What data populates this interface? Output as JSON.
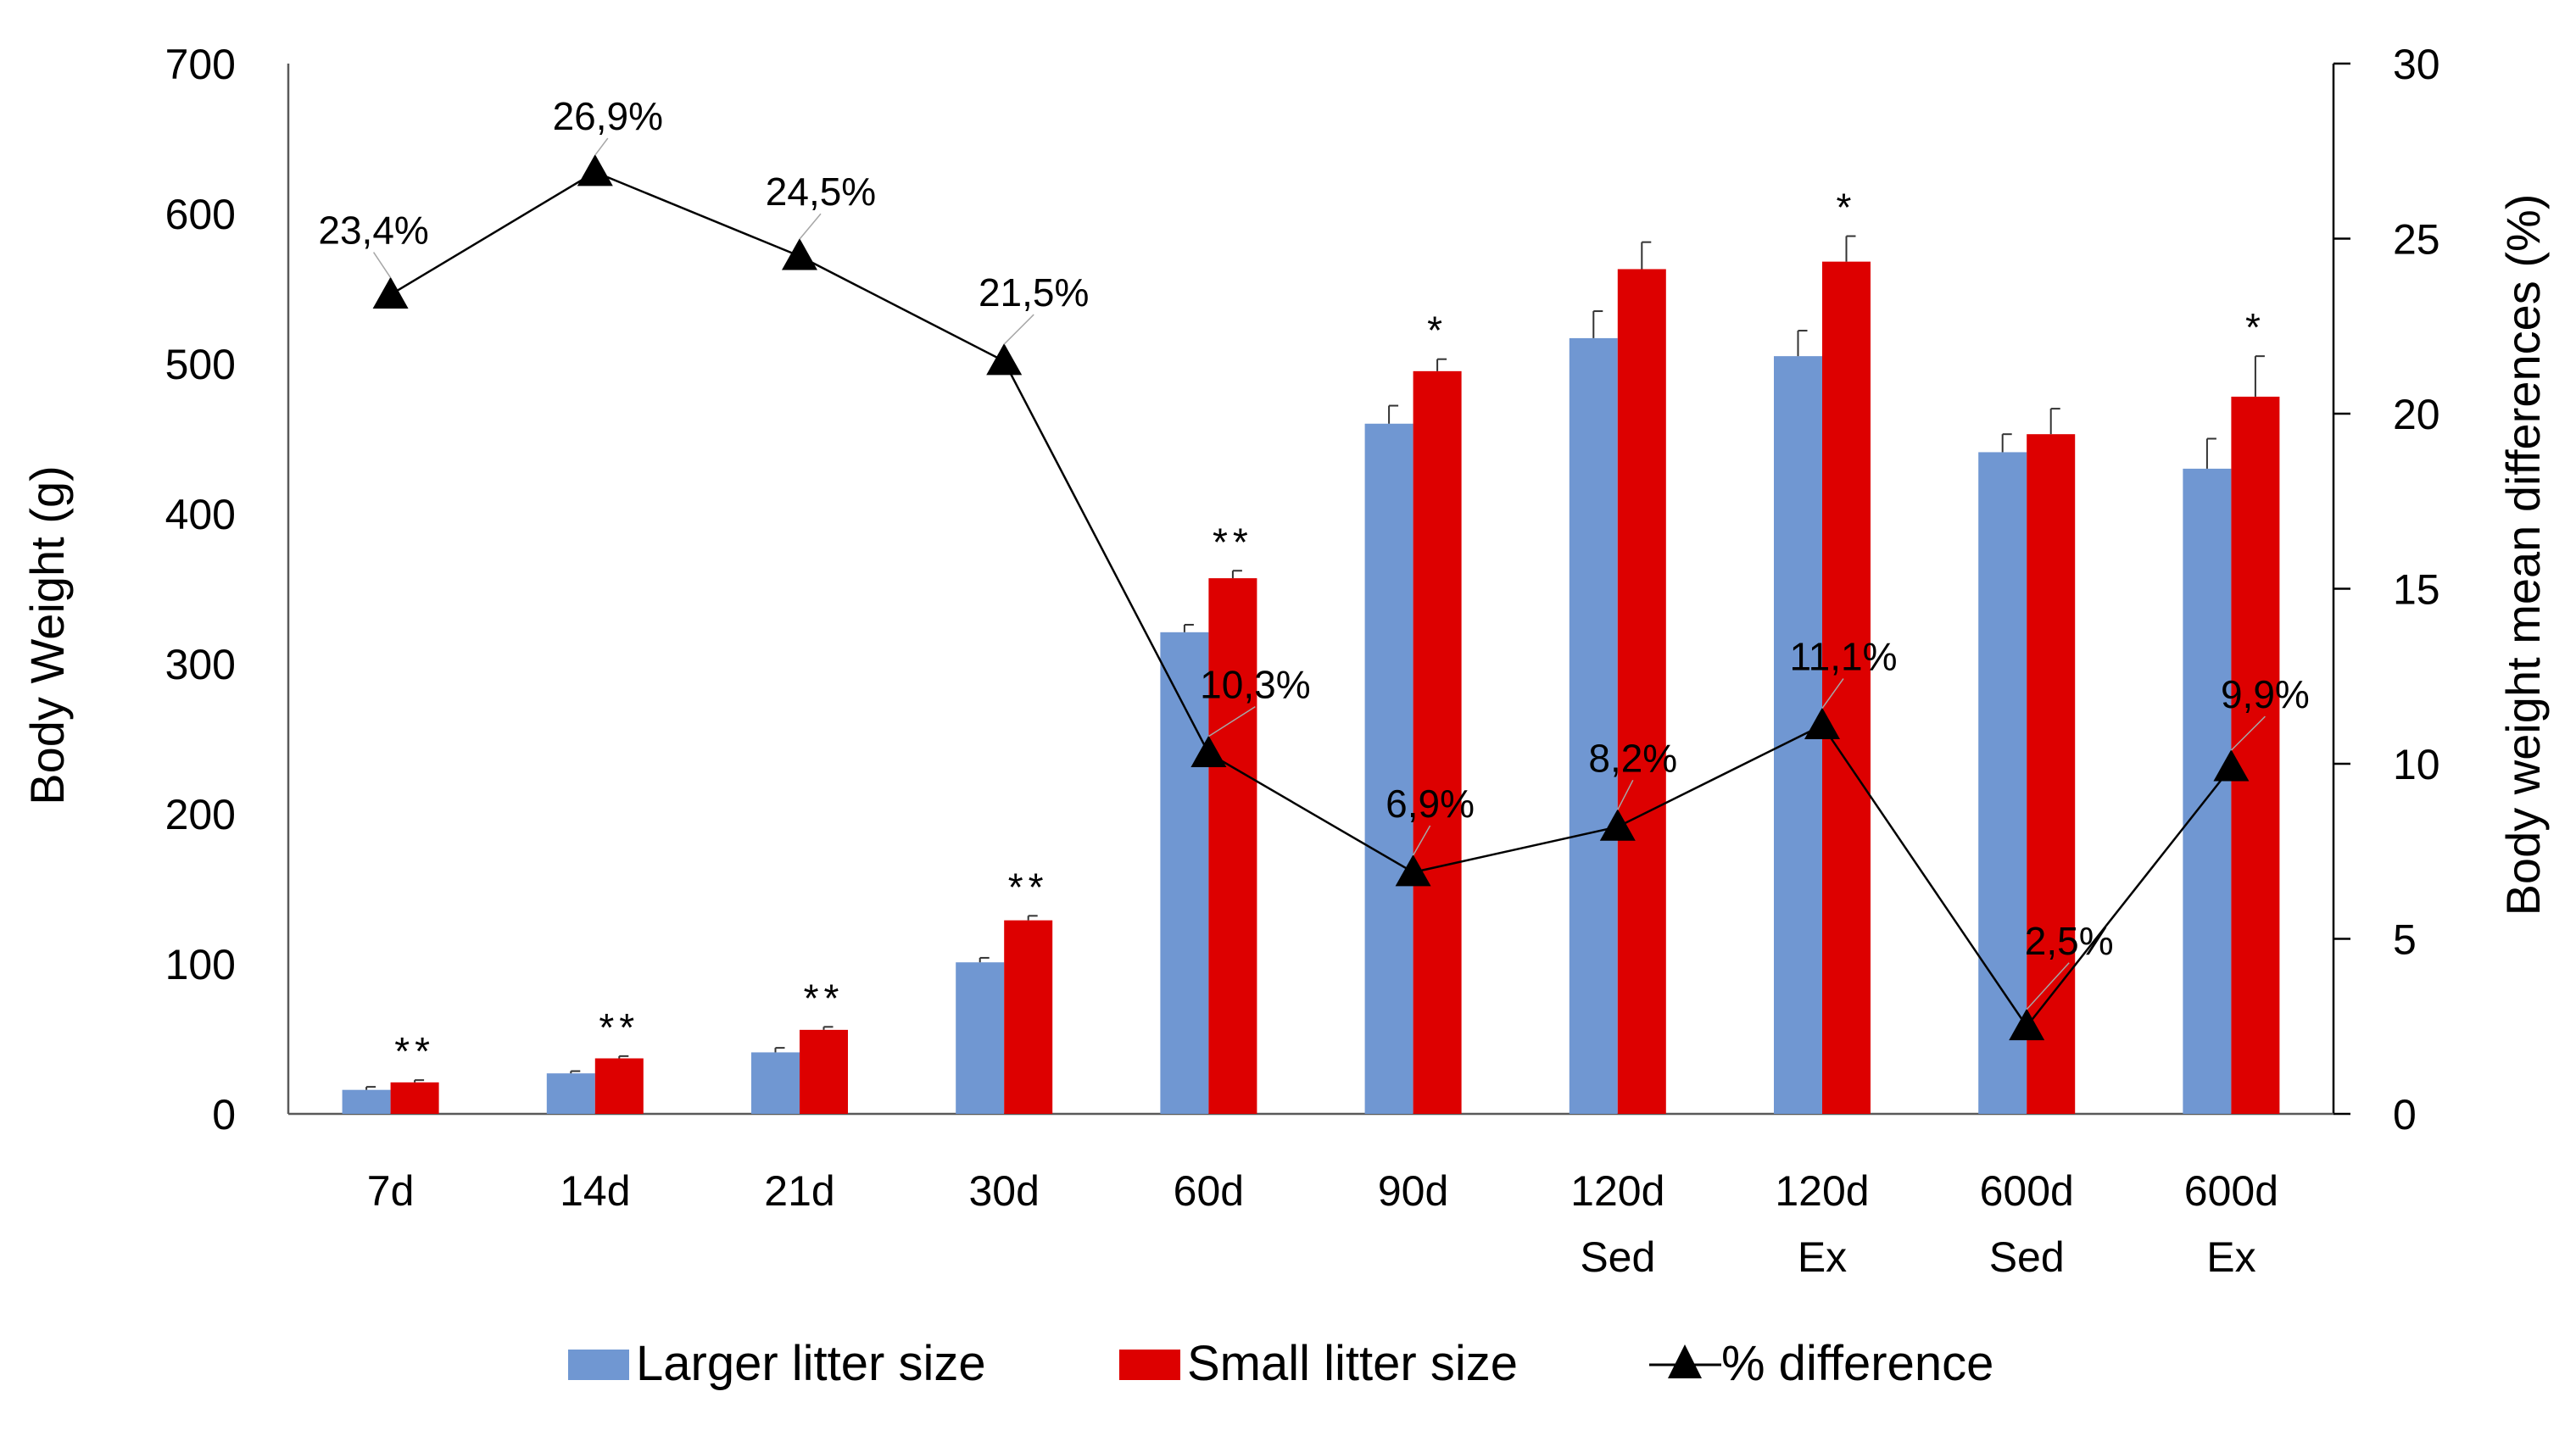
{
  "chart_data": {
    "type": "bar",
    "title": "",
    "categories": [
      [
        "7d"
      ],
      [
        "14d"
      ],
      [
        "21d"
      ],
      [
        "30d"
      ],
      [
        "60d"
      ],
      [
        "90d"
      ],
      [
        "120d",
        "Sed"
      ],
      [
        "120d",
        "Ex"
      ],
      [
        "600d",
        "Sed"
      ],
      [
        "600d",
        "Ex"
      ]
    ],
    "series": [
      {
        "name": "Larger litter size",
        "color": "#7097d2",
        "values": [
          16,
          27,
          41,
          101,
          321,
          460,
          517,
          505,
          441,
          430
        ],
        "errors": [
          2,
          1.5,
          3,
          3,
          5,
          12,
          18,
          17,
          12,
          20
        ]
      },
      {
        "name": "Small litter size",
        "color": "#dd0000",
        "values": [
          21,
          37,
          56,
          129,
          357,
          495,
          563,
          568,
          453,
          478
        ],
        "errors": [
          1.5,
          1.5,
          2,
          3,
          5,
          8,
          18,
          17,
          17,
          27
        ]
      }
    ],
    "line_series": {
      "name": "% difference",
      "marker": "triangle",
      "color": "#000000",
      "axis": "right",
      "values": [
        23.4,
        26.9,
        24.5,
        21.5,
        10.3,
        6.9,
        8.2,
        11.1,
        2.5,
        9.9
      ],
      "labels": [
        "23,4%",
        "26,9%",
        "24,5%",
        "21,5%",
        "10,3%",
        "6,9%",
        "8,2%",
        "11,1%",
        "2,5%",
        "9,9%"
      ]
    },
    "significance": [
      "**",
      "**",
      "**",
      "**",
      "**",
      "*",
      "",
      "*",
      "",
      "*"
    ],
    "ylabel": "Body Weight (g)",
    "ylim": [
      0,
      700
    ],
    "yticks": [
      "0",
      "100",
      "200",
      "300",
      "400",
      "500",
      "600",
      "700"
    ],
    "y2label": "Body weight mean differences (%)",
    "y2lim": [
      0,
      30
    ],
    "y2ticks": [
      "0",
      "5",
      "10",
      "15",
      "20",
      "25",
      "30"
    ],
    "legend": [
      "Larger litter size",
      "Small litter size",
      "% difference"
    ],
    "legend_position": "bottom"
  }
}
